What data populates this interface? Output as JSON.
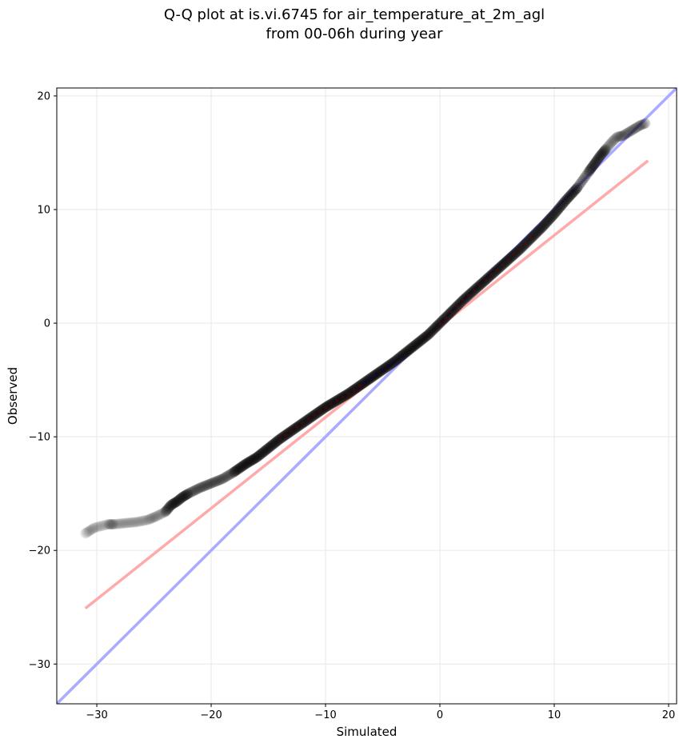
{
  "chart_data": {
    "type": "scatter",
    "title": "Q-Q plot at is.vi.6745 for air_temperature_at_2m_agl",
    "subtitle": "from 00-06h during year",
    "xlabel": "Simulated",
    "ylabel": "Observed",
    "xlim": [
      -33.5,
      20.7
    ],
    "ylim": [
      -33.5,
      20.7
    ],
    "xticks": [
      -30,
      -20,
      -10,
      0,
      10,
      20
    ],
    "yticks": [
      -30,
      -20,
      -10,
      0,
      10,
      20
    ],
    "xtick_labels": [
      "−30",
      "−20",
      "−10",
      "0",
      "10",
      "20"
    ],
    "ytick_labels": [
      "−30",
      "−20",
      "−10",
      "0",
      "10",
      "20"
    ],
    "grid": true,
    "quantiles": {
      "x": [
        -31.0,
        -30.2,
        -29.0,
        -28.5,
        -27.5,
        -26.5,
        -25.5,
        -24.8,
        -24.0,
        -23.5,
        -23.0,
        -22.5,
        -22.0,
        -21.0,
        -20.0,
        -19.0,
        -18.0,
        -17.0,
        -16.0,
        -15.0,
        -14.0,
        -13.0,
        -12.0,
        -11.0,
        -10.0,
        -9.0,
        -8.0,
        -7.0,
        -6.0,
        -5.0,
        -4.0,
        -3.0,
        -2.0,
        -1.0,
        0.0,
        1.0,
        2.0,
        3.0,
        4.0,
        5.0,
        6.0,
        7.0,
        8.0,
        9.0,
        10.0,
        11.0,
        12.0,
        13.0,
        13.5,
        14.0,
        14.5,
        15.0,
        15.5,
        16.0,
        16.5,
        17.0,
        17.5,
        18.0
      ],
      "y": [
        -18.5,
        -18.0,
        -17.7,
        -17.7,
        -17.6,
        -17.5,
        -17.3,
        -17.0,
        -16.6,
        -16.0,
        -15.7,
        -15.3,
        -15.0,
        -14.5,
        -14.1,
        -13.7,
        -13.1,
        -12.4,
        -11.8,
        -11.0,
        -10.2,
        -9.5,
        -8.8,
        -8.1,
        -7.4,
        -6.8,
        -6.2,
        -5.5,
        -4.8,
        -4.1,
        -3.4,
        -2.6,
        -1.8,
        -1.0,
        0.0,
        1.0,
        2.0,
        2.9,
        3.8,
        4.7,
        5.6,
        6.5,
        7.5,
        8.5,
        9.6,
        10.8,
        11.9,
        13.3,
        14.0,
        14.7,
        15.3,
        15.9,
        16.4,
        16.5,
        16.8,
        17.1,
        17.4,
        17.6
      ]
    },
    "identity_line": {
      "x": [
        -33.5,
        20.7
      ],
      "y": [
        -33.5,
        20.7
      ]
    },
    "regression_line": {
      "x": [
        -31.0,
        18.2
      ],
      "y": [
        -25.1,
        14.3
      ]
    },
    "colors": {
      "points": "#000000",
      "identity_line": "#aaaaff",
      "regression_line": "#ffaaaa",
      "grid": "#ebebeb",
      "point_core_blue": "#00007f",
      "point_core_red": "#7f0000"
    }
  }
}
